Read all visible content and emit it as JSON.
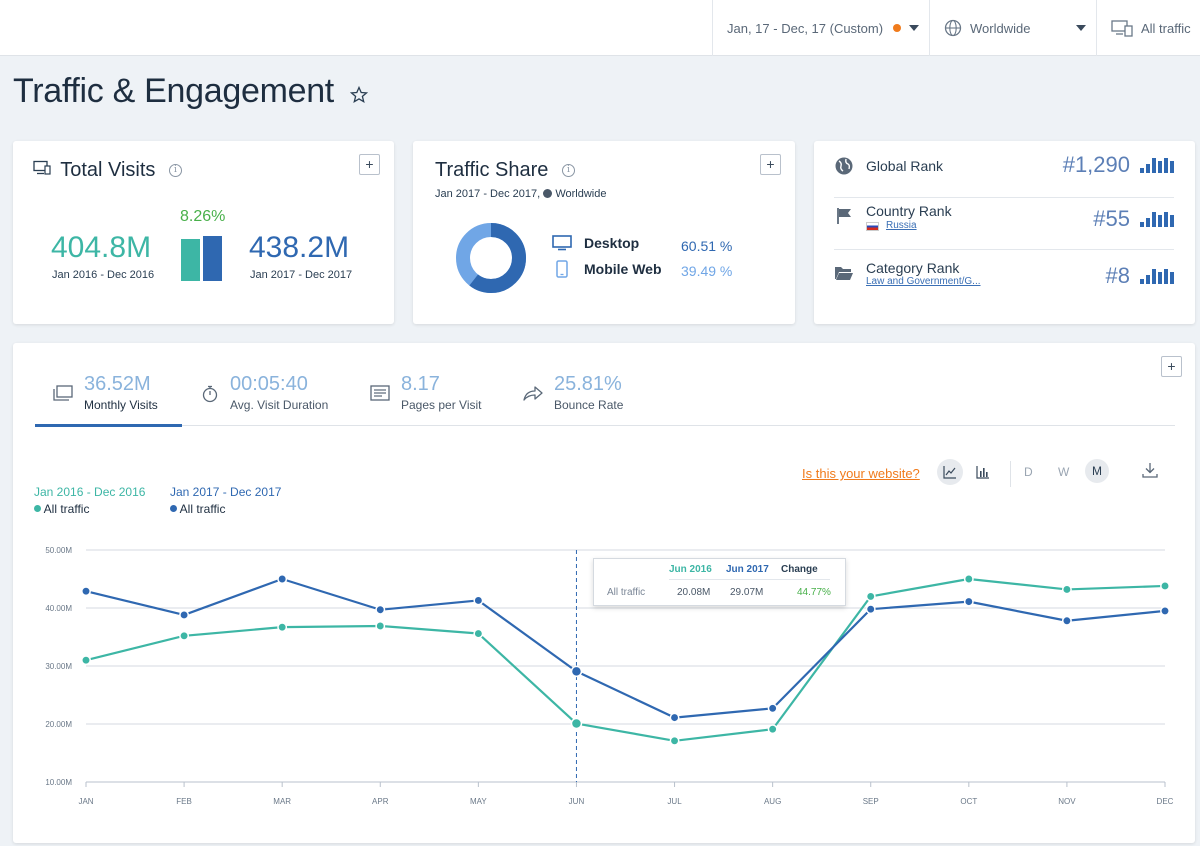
{
  "topbar": {
    "date_range": "Jan, 17 - Dec, 17 (Custom)",
    "geo": "Worldwide",
    "traffic": "All traffic"
  },
  "page": {
    "title": "Traffic & Engagement"
  },
  "total_visits": {
    "title": "Total Visits",
    "prev_value": "404.8M",
    "prev_period": "Jan 2016 - Dec 2016",
    "change": "8.26%",
    "curr_value": "438.2M",
    "curr_period": "Jan 2017 - Dec 2017",
    "bar_ratio": 0.924
  },
  "traffic_share": {
    "title": "Traffic Share",
    "subtitle": "Jan 2017 - Dec 2017,",
    "subtitle_geo": "Worldwide",
    "desktop_label": "Desktop",
    "desktop_pct": "60.51 %",
    "mobile_label": "Mobile Web",
    "mobile_pct": "39.49 %",
    "desktop_share": 60.51
  },
  "ranks": {
    "global_label": "Global Rank",
    "global_value": "#1,290",
    "country_label": "Country Rank",
    "country_name": "Russia",
    "country_value": "#55",
    "category_label": "Category Rank",
    "category_name": "Law and Government/G...",
    "category_value": "#8"
  },
  "metrics": [
    {
      "value": "36.52M",
      "label": "Monthly Visits"
    },
    {
      "value": "00:05:40",
      "label": "Avg. Visit Duration"
    },
    {
      "value": "8.17",
      "label": "Pages per Visit"
    },
    {
      "value": "25.81%",
      "label": "Bounce Rate"
    }
  ],
  "chart_controls": {
    "website_link": "Is this your website?",
    "granularity": [
      "D",
      "W",
      "M"
    ],
    "selected": "M"
  },
  "legend": {
    "s1_period": "Jan 2016 - Dec 2016",
    "s1_name": "All traffic",
    "s2_period": "Jan 2017 - Dec 2017",
    "s2_name": "All traffic"
  },
  "tooltip": {
    "col1": "Jun 2016",
    "col2": "Jun 2017",
    "col3": "Change",
    "row_label": "All traffic",
    "v1": "20.08M",
    "v2": "29.07M",
    "change": "44.77%"
  },
  "colors": {
    "teal": "#3db6a5",
    "blue": "#2f68b1",
    "orange": "#f07b1c"
  },
  "chart_data": {
    "type": "line",
    "categories": [
      "JAN",
      "FEB",
      "MAR",
      "APR",
      "MAY",
      "JUN",
      "JUL",
      "AUG",
      "SEP",
      "OCT",
      "NOV",
      "DEC"
    ],
    "series": [
      {
        "name": "Jan 2016 - Dec 2016",
        "values": [
          31.0,
          35.2,
          36.7,
          36.9,
          35.6,
          20.08,
          17.1,
          19.1,
          42.0,
          45.0,
          43.2,
          43.8
        ]
      },
      {
        "name": "Jan 2017 - Dec 2017",
        "values": [
          42.9,
          38.8,
          45.0,
          39.7,
          41.3,
          29.07,
          21.1,
          22.7,
          39.8,
          41.1,
          37.8,
          39.5
        ]
      }
    ],
    "yticks": [
      "10.00M",
      "20.00M",
      "30.00M",
      "40.00M",
      "50.00M"
    ],
    "ylim": [
      10,
      50
    ],
    "highlight_index": 5
  }
}
